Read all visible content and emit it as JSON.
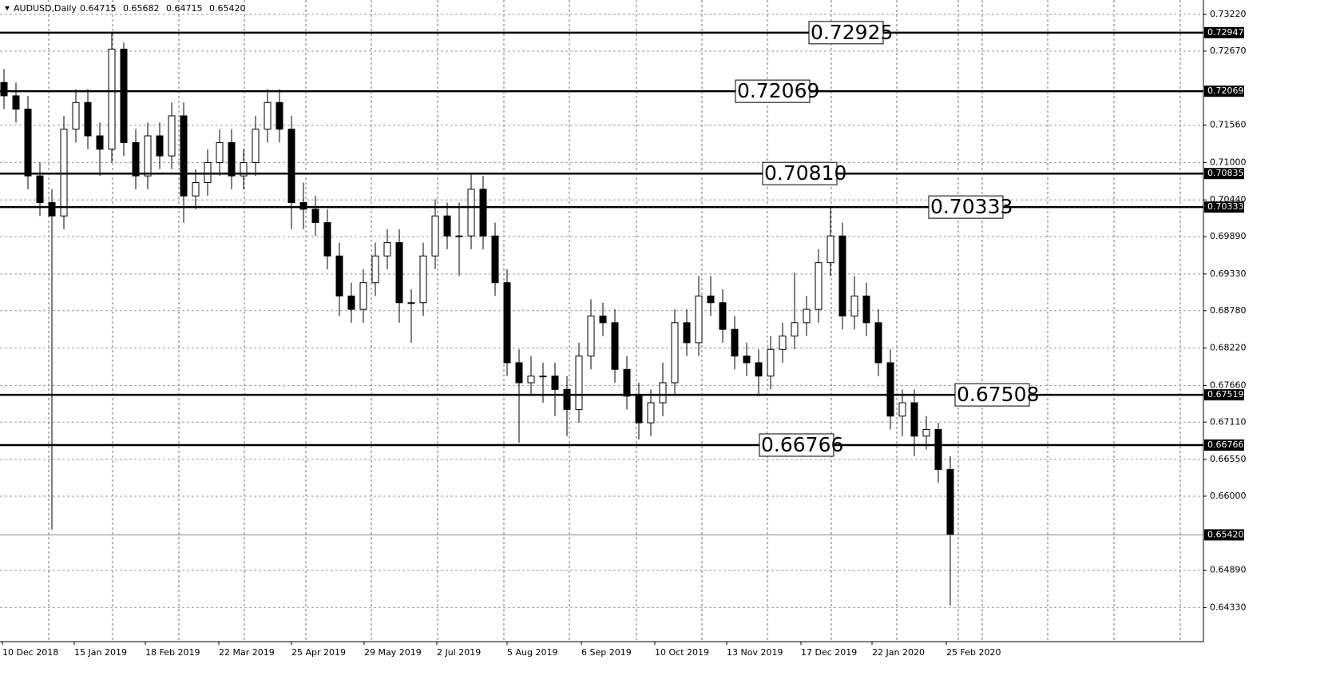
{
  "chart_data": {
    "type": "candlestick",
    "title": "AUDUSD,Daily",
    "header_values": [
      {
        "value": 0.64715,
        "label": "0.64715"
      },
      {
        "value": 0.65682,
        "label": "0.65682"
      },
      {
        "value": 0.64715,
        "label": "0.64715"
      },
      {
        "value": 0.6542,
        "label": "0.65420"
      }
    ],
    "categories": [
      "10 Dec 2018",
      "15 Jan 2019",
      "18 Feb 2019",
      "22 Mar 2019",
      "25 Apr 2019",
      "29 May 2019",
      "2 Jul 2019",
      "5 Aug 2019",
      "6 Sep 2019",
      "10 Oct 2019",
      "13 Nov 2019",
      "17 Dec 2019",
      "22 Jan 2020",
      "25 Feb 2020"
    ],
    "open": [
      0.722,
      0.72,
      0.718,
      0.708,
      0.704,
      0.702,
      0.715,
      0.719,
      0.714,
      0.712,
      0.727,
      0.713,
      0.708,
      0.714,
      0.711,
      0.717,
      0.705,
      0.707,
      0.71,
      0.713,
      0.708,
      0.71,
      0.715,
      0.719,
      0.715,
      0.704,
      0.703,
      0.701,
      0.696,
      0.69,
      0.688,
      0.692,
      0.696,
      0.698,
      0.689,
      0.689,
      0.696,
      0.702,
      0.699,
      0.699,
      0.706,
      0.699,
      0.692,
      0.68,
      0.677,
      0.678,
      0.678,
      0.676,
      0.673,
      0.681,
      0.687,
      0.686,
      0.679,
      0.675,
      0.671,
      0.674,
      0.677,
      0.686,
      0.683,
      0.69,
      0.689,
      0.685,
      0.681,
      0.68,
      0.678,
      0.682,
      0.684,
      0.686,
      0.688,
      0.695,
      0.699,
      0.687,
      0.69,
      0.686,
      0.68,
      0.672,
      0.674,
      0.669,
      0.67,
      0.664
    ],
    "high": [
      0.724,
      0.722,
      0.72,
      0.71,
      0.706,
      0.717,
      0.721,
      0.721,
      0.716,
      0.7295,
      0.728,
      0.715,
      0.716,
      0.716,
      0.719,
      0.719,
      0.709,
      0.712,
      0.715,
      0.715,
      0.712,
      0.717,
      0.721,
      0.721,
      0.717,
      0.707,
      0.705,
      0.703,
      0.698,
      0.692,
      0.694,
      0.698,
      0.7,
      0.7,
      0.691,
      0.698,
      0.7045,
      0.704,
      0.704,
      0.7082,
      0.708,
      0.701,
      0.694,
      0.682,
      0.681,
      0.68,
      0.68,
      0.678,
      0.683,
      0.6895,
      0.689,
      0.688,
      0.681,
      0.677,
      0.676,
      0.68,
      0.688,
      0.688,
      0.693,
      0.693,
      0.691,
      0.687,
      0.683,
      0.682,
      0.684,
      0.686,
      0.6935,
      0.69,
      0.697,
      0.7033,
      0.701,
      0.693,
      0.692,
      0.688,
      0.682,
      0.676,
      0.676,
      0.672,
      0.671,
      0.666
    ],
    "low": [
      0.718,
      0.716,
      0.706,
      0.702,
      0.655,
      0.7,
      0.713,
      0.712,
      0.708,
      0.71,
      0.711,
      0.706,
      0.706,
      0.709,
      0.709,
      0.701,
      0.703,
      0.705,
      0.708,
      0.706,
      0.706,
      0.708,
      0.713,
      0.713,
      0.7,
      0.7,
      0.699,
      0.694,
      0.687,
      0.686,
      0.686,
      0.69,
      0.694,
      0.686,
      0.683,
      0.687,
      0.694,
      0.697,
      0.693,
      0.697,
      0.697,
      0.69,
      0.678,
      0.668,
      0.675,
      0.674,
      0.672,
      0.669,
      0.671,
      0.679,
      0.684,
      0.677,
      0.673,
      0.6685,
      0.669,
      0.672,
      0.675,
      0.681,
      0.681,
      0.687,
      0.683,
      0.679,
      0.678,
      0.675,
      0.676,
      0.68,
      0.682,
      0.684,
      0.686,
      0.693,
      0.685,
      0.685,
      0.684,
      0.678,
      0.67,
      0.669,
      0.666,
      0.667,
      0.662,
      0.6436
    ],
    "close": [
      0.72,
      0.718,
      0.708,
      0.704,
      0.702,
      0.715,
      0.719,
      0.714,
      0.712,
      0.727,
      0.713,
      0.708,
      0.714,
      0.711,
      0.717,
      0.705,
      0.707,
      0.71,
      0.713,
      0.708,
      0.71,
      0.715,
      0.719,
      0.715,
      0.704,
      0.703,
      0.701,
      0.696,
      0.69,
      0.688,
      0.692,
      0.696,
      0.698,
      0.689,
      0.689,
      0.696,
      0.702,
      0.699,
      0.699,
      0.706,
      0.699,
      0.692,
      0.68,
      0.677,
      0.678,
      0.678,
      0.676,
      0.673,
      0.681,
      0.687,
      0.686,
      0.679,
      0.675,
      0.671,
      0.674,
      0.677,
      0.686,
      0.683,
      0.69,
      0.689,
      0.685,
      0.681,
      0.68,
      0.678,
      0.682,
      0.684,
      0.686,
      0.688,
      0.695,
      0.699,
      0.687,
      0.69,
      0.686,
      0.68,
      0.672,
      0.674,
      0.669,
      0.67,
      0.664,
      0.6542
    ],
    "ylim": [
      0.6382,
      0.73436
    ],
    "yticks": [
      {
        "value": 0.7322,
        "label": "0.73220"
      },
      {
        "value": 0.7267,
        "label": "0.72670"
      },
      {
        "value": 0.7156,
        "label": "0.71560"
      },
      {
        "value": 0.71,
        "label": "0.71000"
      },
      {
        "value": 0.7044,
        "label": "0.70440"
      },
      {
        "value": 0.6989,
        "label": "0.69890"
      },
      {
        "value": 0.6933,
        "label": "0.69330"
      },
      {
        "value": 0.6878,
        "label": "0.68780"
      },
      {
        "value": 0.6822,
        "label": "0.68220"
      },
      {
        "value": 0.6766,
        "label": "0.67660"
      },
      {
        "value": 0.6711,
        "label": "0.67110"
      },
      {
        "value": 0.6655,
        "label": "0.66550"
      },
      {
        "value": 0.66,
        "label": "0.66000"
      },
      {
        "value": 0.6489,
        "label": "0.64890"
      },
      {
        "value": 0.6433,
        "label": "0.64330"
      }
    ],
    "levels": [
      {
        "value": 0.72947,
        "label": "0.72947",
        "annotation": "0.72925"
      },
      {
        "value": 0.72069,
        "label": "0.72069",
        "annotation": "0.72069"
      },
      {
        "value": 0.70835,
        "label": "0.70835",
        "annotation": "0.70810"
      },
      {
        "value": 0.70333,
        "label": "0.70333",
        "annotation": "0.70333"
      },
      {
        "value": 0.67519,
        "label": "0.67519",
        "annotation": "0.67508"
      },
      {
        "value": 0.66766,
        "label": "0.66766",
        "annotation": "0.66766"
      }
    ],
    "current_price": {
      "value": 0.6542,
      "label": "0.65420"
    },
    "grid": true,
    "color": "#000000"
  }
}
